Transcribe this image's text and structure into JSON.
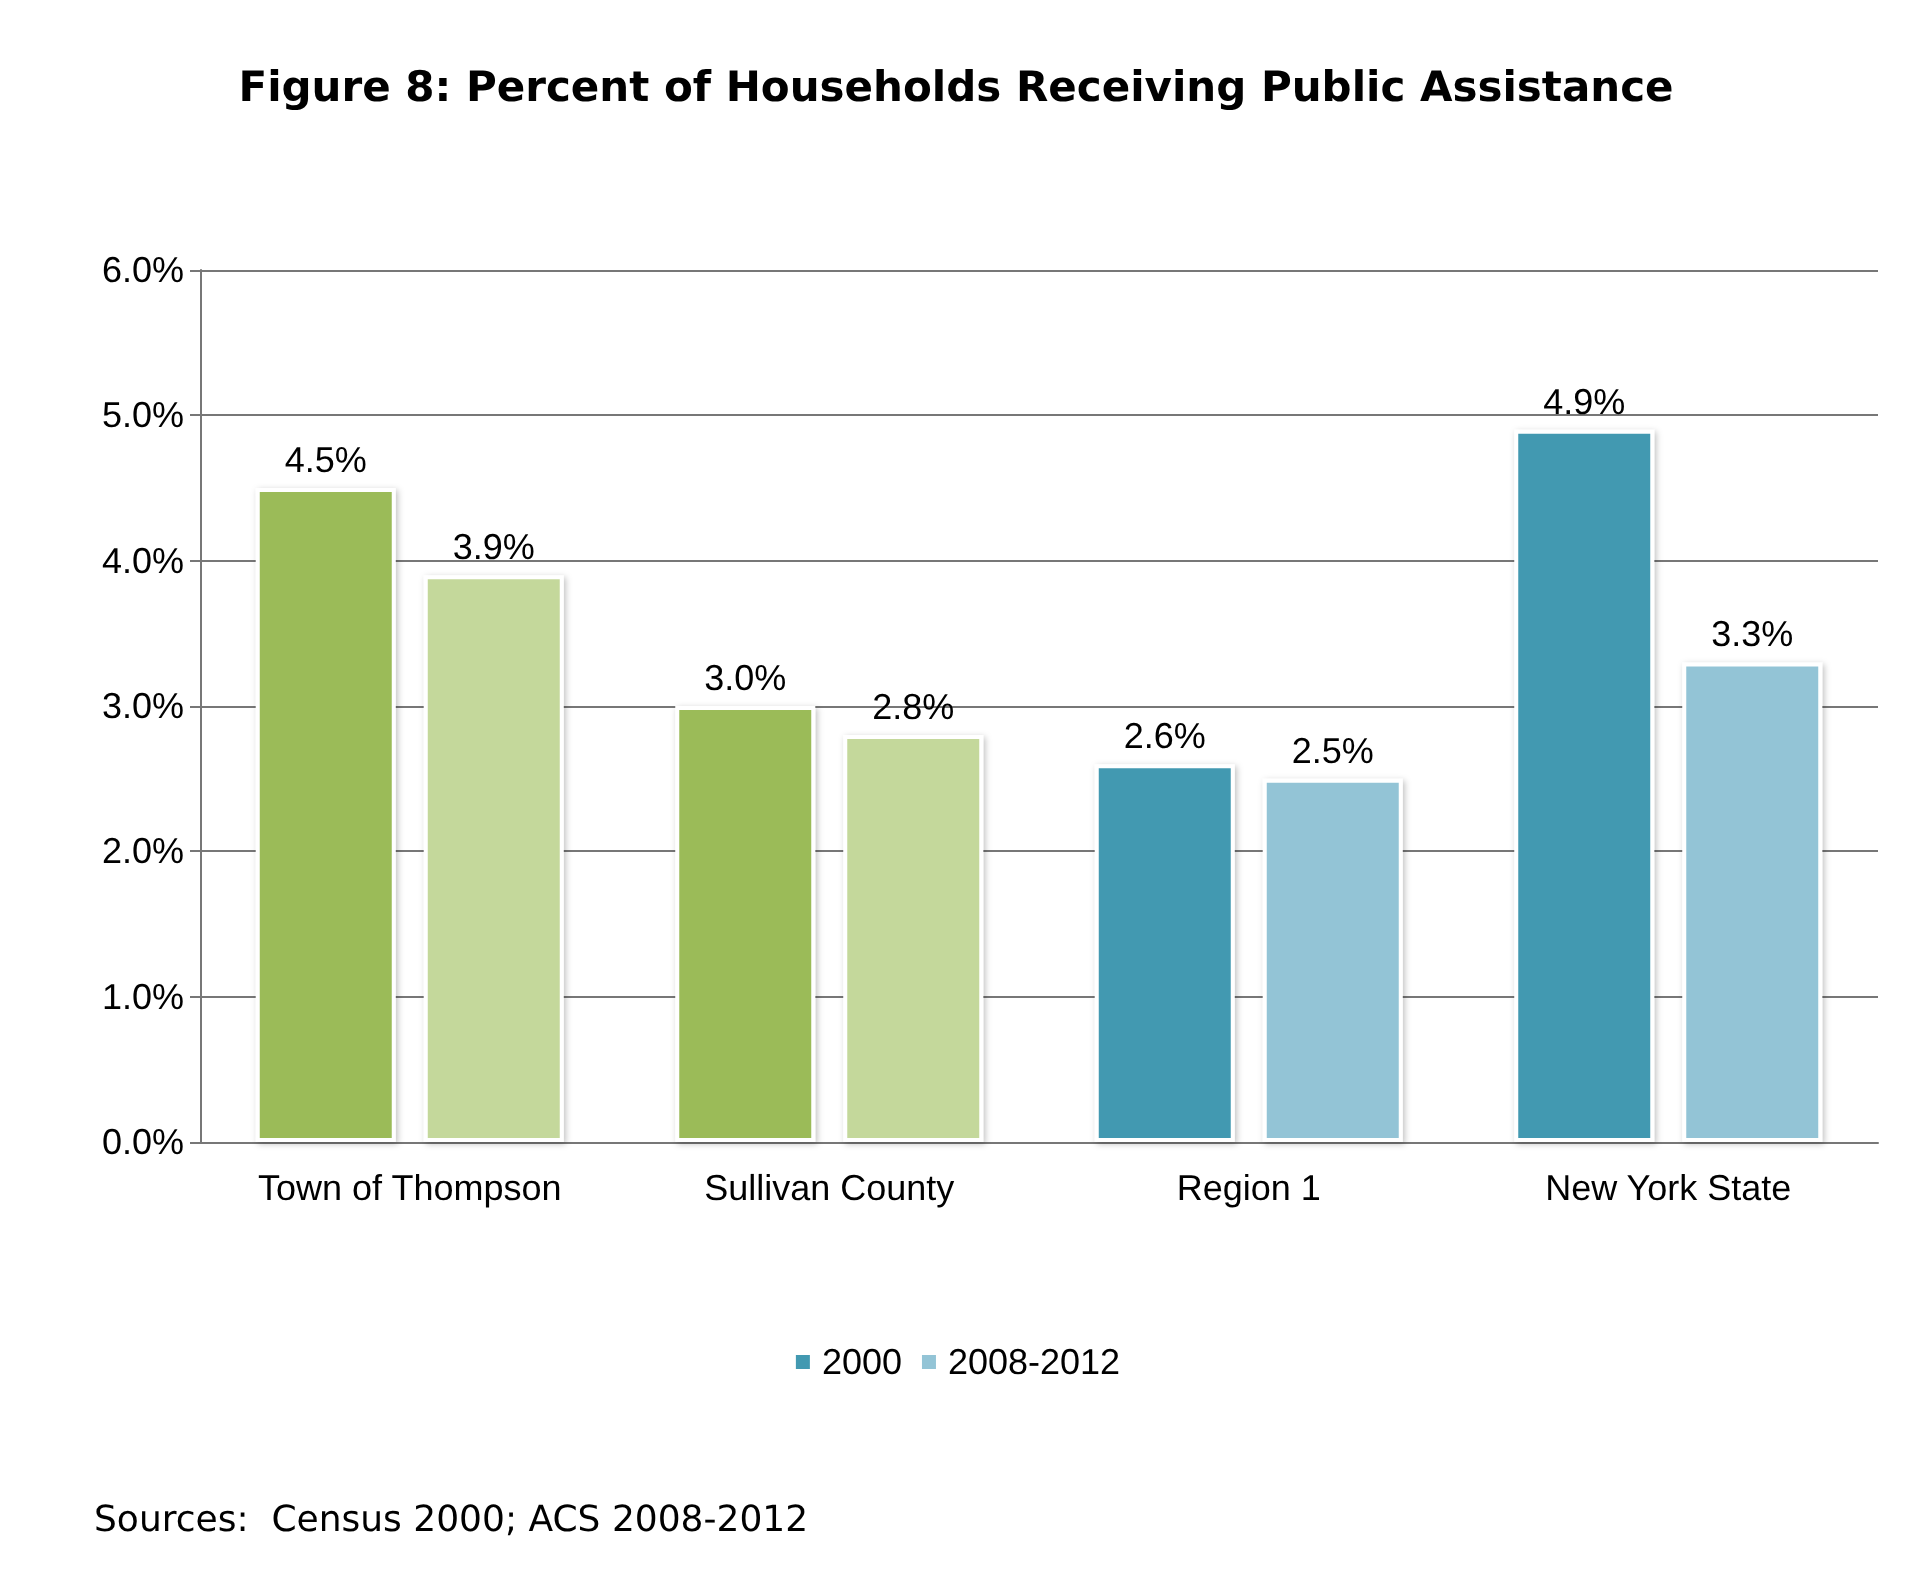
{
  "chart_data": {
    "type": "bar",
    "title": "Figure 8: Percent of Households Receiving Public Assistance",
    "categories": [
      "Town of Thompson",
      "Sullivan County",
      "Region 1",
      "New York State"
    ],
    "series": [
      {
        "name": "2000",
        "color": "#4299b1",
        "colors": [
          "#9bbb59",
          "#9bbb59",
          "#4299b1",
          "#4299b1"
        ],
        "values": [
          4.5,
          3.0,
          2.6,
          4.9
        ],
        "value_labels": [
          "4.5%",
          "3.0%",
          "2.6%",
          "4.9%"
        ]
      },
      {
        "name": "2008-2012",
        "color": "#93c4d6",
        "colors": [
          "#c4d89b",
          "#c4d89b",
          "#93c4d6",
          "#93c4d6"
        ],
        "values": [
          3.9,
          2.8,
          2.5,
          3.3
        ],
        "value_labels": [
          "3.9%",
          "2.8%",
          "2.5%",
          "3.3%"
        ]
      }
    ],
    "ylim": [
      0,
      6
    ],
    "yticks": [
      {
        "value": 0,
        "label": "0.0%"
      },
      {
        "value": 1,
        "label": "1.0%"
      },
      {
        "value": 2,
        "label": "2.0%"
      },
      {
        "value": 3,
        "label": "3.0%"
      },
      {
        "value": 4,
        "label": "4.0%"
      },
      {
        "value": 5,
        "label": "5.0%"
      },
      {
        "value": 6,
        "label": "6.0%"
      }
    ],
    "grid": "y",
    "legend": "bottom",
    "annotations": [
      "Sources:  Census 2000; ACS 2008-2012"
    ]
  }
}
